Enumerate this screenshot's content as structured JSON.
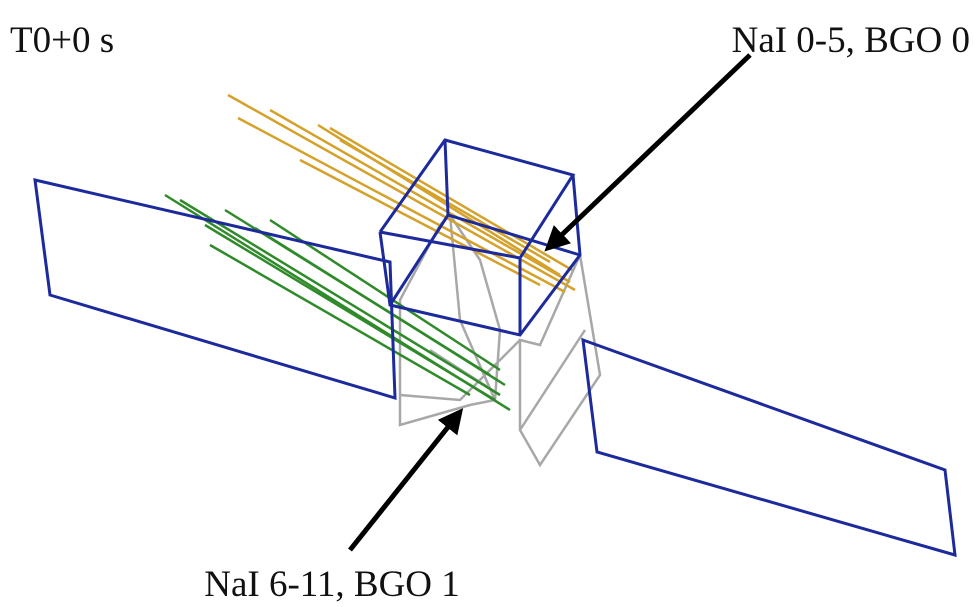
{
  "labels": {
    "time": "T0+0 s",
    "top": "NaI 0-5, BGO 0",
    "bottom": "NaI 6-11, BGO 1"
  }
}
